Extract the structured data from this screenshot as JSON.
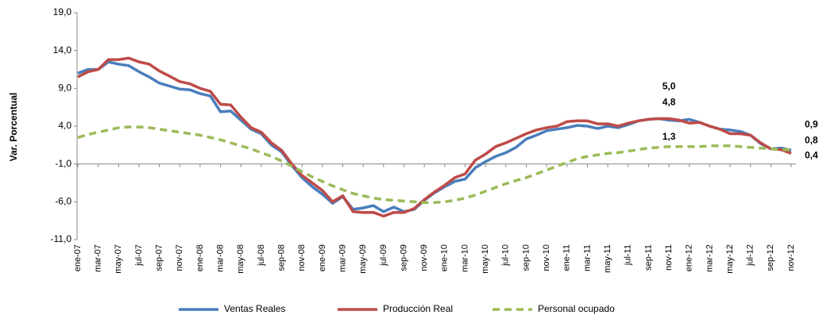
{
  "chart_data": {
    "type": "line",
    "y_label": "Var. Porcentual",
    "categories": [
      "ene-07",
      null,
      "mar-07",
      null,
      "may-07",
      null,
      "jul-07",
      null,
      "sep-07",
      null,
      "nov-07",
      null,
      "ene-08",
      null,
      "mar-08",
      null,
      "may-08",
      null,
      "jul-08",
      null,
      "sep-08",
      null,
      "nov-08",
      null,
      "ene-09",
      null,
      "mar-09",
      null,
      "may-09",
      null,
      "jul-09",
      null,
      "sep-09",
      null,
      "nov-09",
      null,
      "ene-10",
      null,
      "mar-10",
      null,
      "may-10",
      null,
      "jul-10",
      null,
      "sep-10",
      null,
      "nov-10",
      null,
      "ene-11",
      null,
      "mar-11",
      null,
      "may-11",
      null,
      "jul-11",
      null,
      "sep-11",
      null,
      "nov-11",
      null,
      "ene-12",
      null,
      "mar-12",
      null,
      "may-12",
      null,
      "jul-12",
      null,
      "sep-12",
      null,
      "nov-12"
    ],
    "series": [
      {
        "name": "Ventas Reales",
        "color": "#4a7ebb",
        "dash": false,
        "values": [
          11.0,
          11.5,
          11.5,
          12.5,
          12.2,
          12.0,
          11.2,
          10.5,
          9.7,
          9.3,
          8.9,
          8.8,
          8.3,
          8.0,
          5.9,
          6.0,
          4.8,
          3.6,
          3.0,
          1.5,
          0.6,
          -1.2,
          -2.8,
          -4.0,
          -5.0,
          -6.2,
          -5.3,
          -7.0,
          -6.8,
          -6.5,
          -7.3,
          -6.7,
          -7.3,
          -7.0,
          -5.8,
          -4.8,
          -4.0,
          -3.3,
          -3.0,
          -1.5,
          -0.7,
          0.0,
          0.5,
          1.2,
          2.3,
          2.8,
          3.4,
          3.6,
          3.8,
          4.1,
          4.0,
          3.7,
          4.0,
          3.8,
          4.2,
          4.7,
          4.9,
          5.0,
          4.8,
          4.7,
          4.9,
          4.5,
          4.0,
          3.6,
          3.5,
          3.3,
          2.8,
          1.7,
          1.0,
          1.1,
          0.8
        ],
        "value_labels": [
          null,
          null,
          null,
          null,
          null,
          null,
          null,
          null,
          null,
          null,
          null,
          null,
          null,
          null,
          null,
          null,
          null,
          null,
          null,
          null,
          null,
          null,
          null,
          null,
          null,
          null,
          null,
          null,
          null,
          null,
          null,
          null,
          null,
          null,
          null,
          null,
          null,
          null,
          null,
          null,
          null,
          null,
          null,
          null,
          null,
          null,
          null,
          null,
          null,
          null,
          null,
          null,
          null,
          null,
          null,
          null,
          null,
          null,
          "4,8",
          null,
          null,
          null,
          null,
          null,
          null,
          null,
          null,
          null,
          null,
          null,
          "0,8"
        ]
      },
      {
        "name": "Producción Real",
        "color": "#be4b48",
        "dash": false,
        "values": [
          10.5,
          11.2,
          11.5,
          12.8,
          12.8,
          13.0,
          12.5,
          12.2,
          11.3,
          10.6,
          9.9,
          9.6,
          9.0,
          8.6,
          6.9,
          6.8,
          5.2,
          3.8,
          3.2,
          1.8,
          0.8,
          -1.0,
          -2.5,
          -3.5,
          -4.5,
          -6.0,
          -5.2,
          -7.3,
          -7.4,
          -7.4,
          -7.9,
          -7.4,
          -7.4,
          -6.9,
          -5.7,
          -4.7,
          -3.8,
          -2.8,
          -2.3,
          -0.5,
          0.3,
          1.3,
          1.8,
          2.4,
          3.0,
          3.5,
          3.8,
          4.0,
          4.6,
          4.7,
          4.7,
          4.3,
          4.3,
          4.0,
          4.4,
          4.7,
          4.9,
          5.0,
          5.0,
          4.8,
          4.4,
          4.5,
          4.0,
          3.6,
          3.0,
          3.0,
          2.8,
          1.8,
          1.0,
          0.9,
          0.4
        ],
        "value_labels": [
          null,
          null,
          null,
          null,
          null,
          null,
          null,
          null,
          null,
          null,
          null,
          null,
          null,
          null,
          null,
          null,
          null,
          null,
          null,
          null,
          null,
          null,
          null,
          null,
          null,
          null,
          null,
          null,
          null,
          null,
          null,
          null,
          null,
          null,
          null,
          null,
          null,
          null,
          null,
          null,
          null,
          null,
          null,
          null,
          null,
          null,
          null,
          null,
          null,
          null,
          null,
          null,
          null,
          null,
          null,
          null,
          null,
          null,
          "5,0",
          null,
          null,
          null,
          null,
          null,
          null,
          null,
          null,
          null,
          null,
          null,
          "0,4"
        ]
      },
      {
        "name": "Personal ocupado",
        "color": "#9bbb59",
        "dash": true,
        "values": [
          2.5,
          2.9,
          3.2,
          3.5,
          3.8,
          3.9,
          3.9,
          3.8,
          3.6,
          3.4,
          3.2,
          3.0,
          2.8,
          2.5,
          2.2,
          1.8,
          1.4,
          1.0,
          0.5,
          0.0,
          -0.6,
          -1.3,
          -2.0,
          -2.7,
          -3.3,
          -3.9,
          -4.4,
          -4.9,
          -5.2,
          -5.5,
          -5.7,
          -5.8,
          -5.9,
          -6.0,
          -6.1,
          -6.1,
          -6.0,
          -5.8,
          -5.5,
          -5.1,
          -4.6,
          -4.1,
          -3.6,
          -3.2,
          -2.8,
          -2.3,
          -1.8,
          -1.3,
          -0.8,
          -0.3,
          0.0,
          0.2,
          0.4,
          0.5,
          0.7,
          0.9,
          1.1,
          1.2,
          1.3,
          1.3,
          1.3,
          1.3,
          1.4,
          1.4,
          1.4,
          1.3,
          1.2,
          1.1,
          1.0,
          0.9,
          0.9
        ],
        "value_labels": [
          null,
          null,
          null,
          null,
          null,
          null,
          null,
          null,
          null,
          null,
          null,
          null,
          null,
          null,
          null,
          null,
          null,
          null,
          null,
          null,
          null,
          null,
          null,
          null,
          null,
          null,
          null,
          null,
          null,
          null,
          null,
          null,
          null,
          null,
          null,
          null,
          null,
          null,
          null,
          null,
          null,
          null,
          null,
          null,
          null,
          null,
          null,
          null,
          null,
          null,
          null,
          null,
          null,
          null,
          null,
          null,
          null,
          null,
          "1,3",
          null,
          null,
          null,
          null,
          null,
          null,
          null,
          null,
          null,
          null,
          null,
          "0,9"
        ]
      }
    ],
    "ylim": [
      -11,
      19
    ],
    "yticks": [
      {
        "value": -11,
        "label": "-11,0"
      },
      {
        "value": -6,
        "label": "-6,0"
      },
      {
        "value": -1,
        "label": "-1,0"
      },
      {
        "value": 4,
        "label": "4,0"
      },
      {
        "value": 9,
        "label": "9,0"
      },
      {
        "value": 14,
        "label": "14,0"
      },
      {
        "value": 19,
        "label": "19,0"
      }
    ],
    "x_axis_at": -1,
    "legend": "bottom"
  }
}
